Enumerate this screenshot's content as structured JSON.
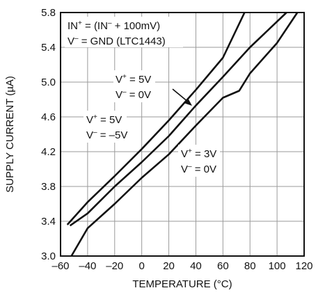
{
  "chart_data": {
    "type": "line",
    "title": "",
    "xlabel": "TEMPERATURE (°C)",
    "ylabel": "SUPPLY CURRENT (µA)",
    "xlim": [
      -60,
      120
    ],
    "ylim": [
      3.0,
      5.8
    ],
    "xticks": [
      -60,
      -40,
      -20,
      0,
      20,
      40,
      60,
      80,
      100,
      120
    ],
    "xtick_labels": [
      "–60",
      "–40",
      "–20",
      "0",
      "20",
      "40",
      "60",
      "80",
      "100",
      "120"
    ],
    "yticks": [
      3.0,
      3.4,
      3.8,
      4.2,
      4.6,
      5.0,
      5.4,
      5.8
    ],
    "ytick_labels": [
      "3.0",
      "3.4",
      "3.8",
      "4.2",
      "4.6",
      "5.0",
      "5.4",
      "5.8"
    ],
    "grid": true,
    "condition_lines": [
      {
        "main": "IN",
        "sup": "+",
        "rest": " = (IN",
        "sup2": "–",
        "rest2": " + 100mV)"
      },
      {
        "main": "V",
        "sup": "–",
        "rest": " = GND (LTC1443)"
      }
    ],
    "series": [
      {
        "label_line1_main": "V",
        "label_line1_sup": "+",
        "label_line1_rest": " = 5V",
        "label_line2_main": "V",
        "label_line2_sup": "–",
        "label_line2_rest": " = –5V",
        "points": [
          [
            -55,
            3.36
          ],
          [
            -40,
            3.62
          ],
          [
            -20,
            3.92
          ],
          [
            0,
            4.23
          ],
          [
            20,
            4.56
          ],
          [
            40,
            4.91
          ],
          [
            60,
            5.28
          ],
          [
            76,
            5.8
          ]
        ]
      },
      {
        "label_line1_main": "V",
        "label_line1_sup": "+",
        "label_line1_rest": " = 5V",
        "label_line2_main": "V",
        "label_line2_sup": "–",
        "label_line2_rest": " = 0V",
        "points": [
          [
            -53,
            3.35
          ],
          [
            -40,
            3.49
          ],
          [
            -20,
            3.8
          ],
          [
            0,
            4.08
          ],
          [
            20,
            4.38
          ],
          [
            40,
            4.73
          ],
          [
            60,
            5.06
          ],
          [
            80,
            5.4
          ],
          [
            107,
            5.8
          ]
        ]
      },
      {
        "label_line1_main": "V",
        "label_line1_sup": "+",
        "label_line1_rest": " = 3V",
        "label_line2_main": "V",
        "label_line2_sup": "–",
        "label_line2_rest": " = 0V",
        "points": [
          [
            -52,
            3.0
          ],
          [
            -40,
            3.32
          ],
          [
            -20,
            3.6
          ],
          [
            0,
            3.9
          ],
          [
            20,
            4.17
          ],
          [
            40,
            4.5
          ],
          [
            60,
            4.82
          ],
          [
            72,
            4.9
          ],
          [
            80,
            5.1
          ],
          [
            100,
            5.45
          ],
          [
            115,
            5.8
          ]
        ]
      }
    ]
  }
}
